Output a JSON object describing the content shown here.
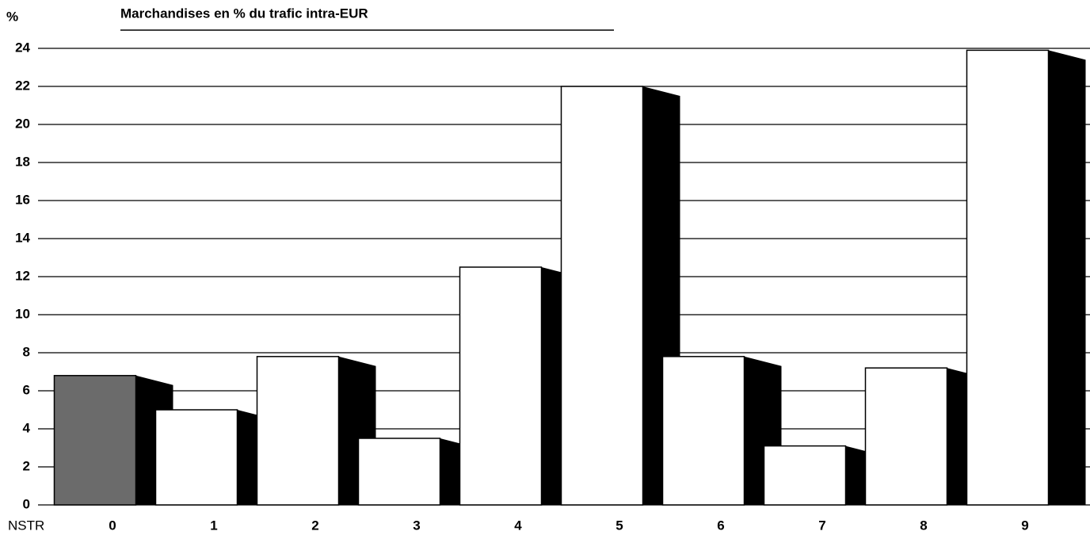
{
  "chart_data": {
    "type": "bar3d",
    "title": "Marchandises en % du trafic intra-EUR",
    "y_label": "%",
    "x_label": "NSTR",
    "categories": [
      "0",
      "1",
      "2",
      "3",
      "4",
      "5",
      "6",
      "7",
      "8",
      "9"
    ],
    "values": [
      6.8,
      5.0,
      7.8,
      3.5,
      12.5,
      22.0,
      7.8,
      3.1,
      7.2,
      23.9
    ],
    "colors": [
      "#6b6b6b",
      "#ffffff",
      "#ffffff",
      "#ffffff",
      "#ffffff",
      "#ffffff",
      "#ffffff",
      "#ffffff",
      "#ffffff",
      "#ffffff"
    ],
    "side_color": "#000000",
    "ylim": [
      0,
      24
    ],
    "yticks": [
      0,
      2,
      4,
      6,
      8,
      10,
      12,
      14,
      16,
      18,
      20,
      22,
      24
    ],
    "grid": true
  }
}
